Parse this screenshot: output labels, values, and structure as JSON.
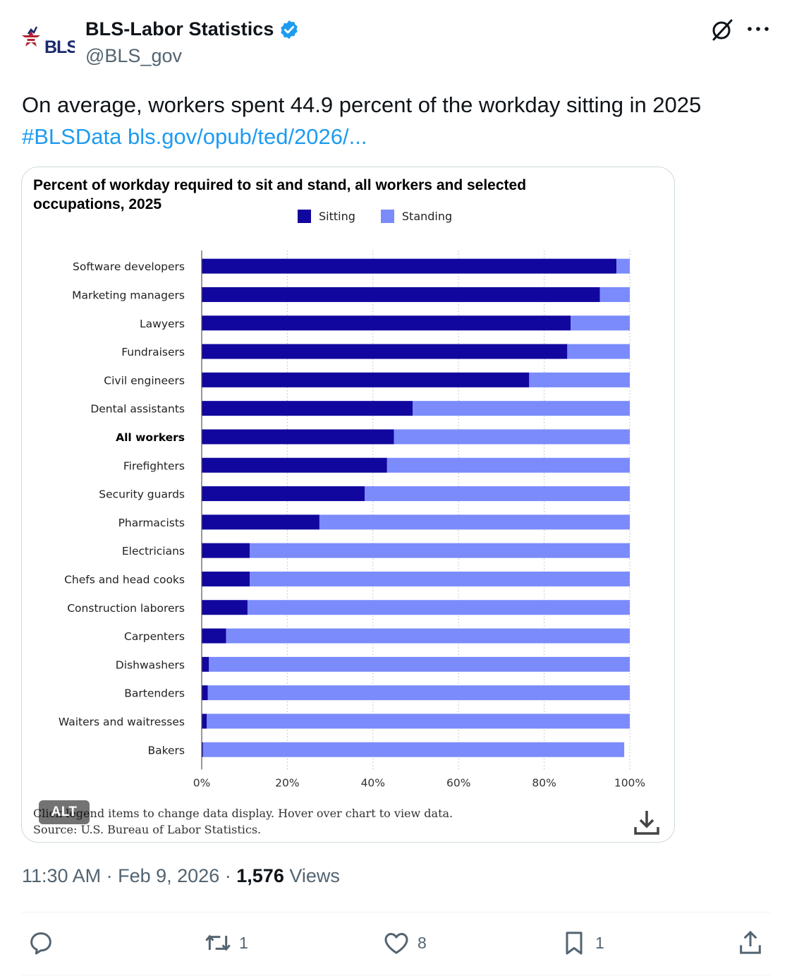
{
  "tweet": {
    "display_name": "BLS-Labor Statistics",
    "handle": "@BLS_gov",
    "avatar_text": "BLS",
    "text": "On average, workers spent 44.9 percent of the workday sitting in 2025",
    "hashtag": "#BLSData",
    "link": "bls.gov/opub/ted/2026/...",
    "time": "11:30 AM",
    "separator": "·",
    "date": "Feb 9, 2026",
    "views_count": "1,576",
    "views_label": "Views"
  },
  "card": {
    "alt_label": "ALT",
    "footnote_line1": "Click legend items to change data display. Hover over chart to view data.",
    "footnote_line2": "Source: U.S. Bureau of Labor Statistics.",
    "icons": {
      "download": "download-icon"
    }
  },
  "chart_data": {
    "type": "bar",
    "orientation": "horizontal",
    "stacked": true,
    "title": "Percent of workday required to sit and stand, all workers and selected occupations, 2025",
    "categories": [
      "Software developers",
      "Marketing managers",
      "Lawyers",
      "Fundraisers",
      "Civil engineers",
      "Dental assistants",
      "All workers",
      "Firefighters",
      "Security guards",
      "Pharmacists",
      "Electricians",
      "Chefs and head cooks",
      "Construction laborers",
      "Carpenters",
      "Dishwashers",
      "Bartenders",
      "Waiters and waitresses",
      "Bakers"
    ],
    "highlight_category": "All workers",
    "series": [
      {
        "name": "Sitting",
        "color": "#11069e",
        "values": [
          96.9,
          93.0,
          86.2,
          85.4,
          76.5,
          49.3,
          44.9,
          43.3,
          38.1,
          27.5,
          11.2,
          11.2,
          10.7,
          5.7,
          1.7,
          1.4,
          1.2,
          0.3
        ]
      },
      {
        "name": "Standing",
        "color": "#7b8bfc",
        "values": [
          3.1,
          7.0,
          13.8,
          14.6,
          23.5,
          50.7,
          55.1,
          56.7,
          61.9,
          72.5,
          88.8,
          88.8,
          89.3,
          94.3,
          98.3,
          98.6,
          98.8,
          98.4
        ]
      }
    ],
    "xlim": [
      0,
      100
    ],
    "xticks": [
      "0%",
      "20%",
      "40%",
      "60%",
      "80%",
      "100%"
    ],
    "grid": "vertical-dotted",
    "legend": "top"
  },
  "actions": {
    "reply_count": "",
    "retweet_count": "1",
    "like_count": "8",
    "bookmark_count": "1",
    "icons": {
      "reply": "reply-icon",
      "retweet": "retweet-icon",
      "like": "heart-icon",
      "bookmark": "bookmark-icon",
      "share": "share-icon"
    }
  },
  "colors": {
    "accent": "#1d9bf0",
    "verified": "#1d9bf0",
    "muted": "#536471"
  }
}
